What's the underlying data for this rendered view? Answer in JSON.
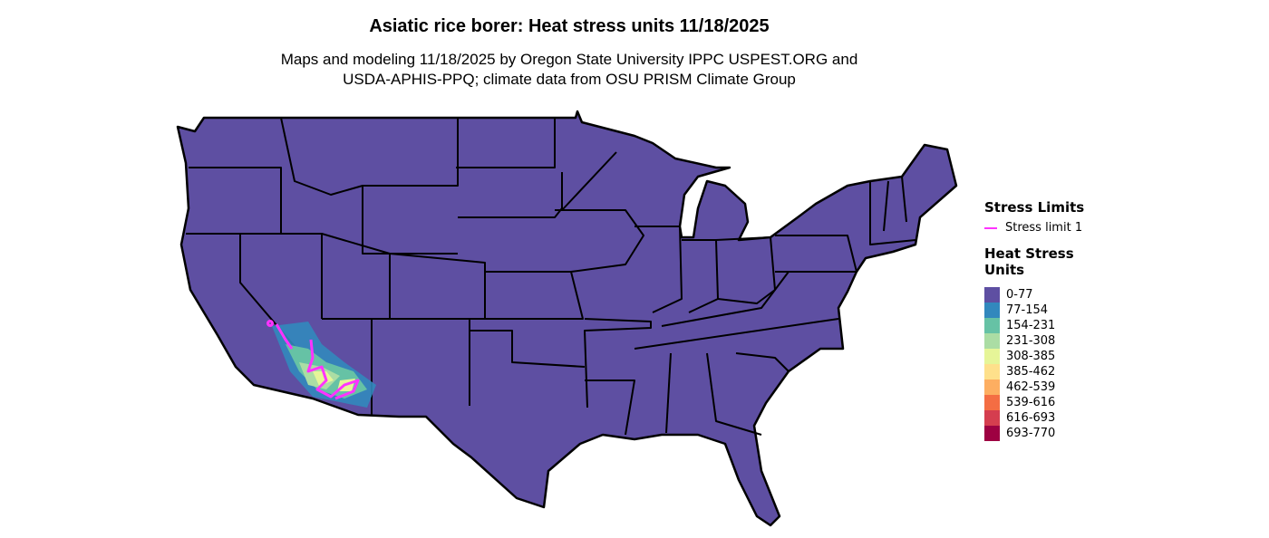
{
  "title": "Asiatic rice borer: Heat stress units 11/18/2025",
  "subtitle_line1": "Maps and modeling 11/18/2025 by Oregon State University IPPC USPEST.ORG and",
  "subtitle_line2": "USDA-APHIS-PPQ; climate data from OSU PRISM Climate Group",
  "legend": {
    "limits_title": "Stress Limits",
    "limit_label": "Stress limit 1",
    "limit_color": "#ff33ff",
    "units_title_line1": "Heat Stress",
    "units_title_line2": "Units",
    "bins": [
      {
        "label": "0-77",
        "color": "#5e4fa2"
      },
      {
        "label": "77-154",
        "color": "#3288bd"
      },
      {
        "label": "154-231",
        "color": "#66c2a5"
      },
      {
        "label": "231-308",
        "color": "#abdda4"
      },
      {
        "label": "308-385",
        "color": "#e6f598"
      },
      {
        "label": "385-462",
        "color": "#fee08b"
      },
      {
        "label": "462-539",
        "color": "#fdae61"
      },
      {
        "label": "539-616",
        "color": "#f46d43"
      },
      {
        "label": "616-693",
        "color": "#d53e4f"
      },
      {
        "label": "693-770",
        "color": "#9e0142"
      }
    ]
  }
}
